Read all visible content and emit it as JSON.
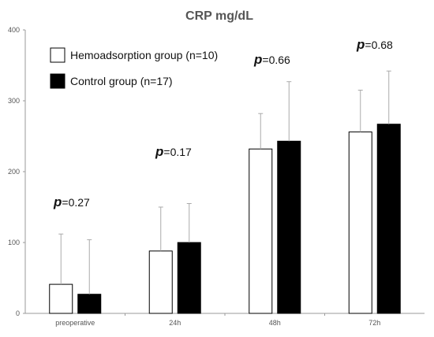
{
  "chart_data": {
    "type": "bar",
    "title": "CRP mg/dL",
    "xlabel": "",
    "ylabel": "",
    "ylim": [
      0,
      400
    ],
    "yticks": [
      0,
      100,
      200,
      300,
      400
    ],
    "categories": [
      "preoperative",
      "24h",
      "48h",
      "72h"
    ],
    "series": [
      {
        "name": "Hemoadsorption group (n=10)",
        "fill": "#ffffff",
        "values": [
          41,
          88,
          232,
          256
        ],
        "error_upper": [
          112,
          150,
          282,
          315
        ]
      },
      {
        "name": "Control group (n=17)",
        "fill": "#000000",
        "values": [
          27,
          100,
          243,
          267
        ],
        "error_upper": [
          104,
          155,
          327,
          342
        ]
      }
    ],
    "annotations": [
      {
        "letter": "p",
        "text": "=0.27",
        "category": "preoperative"
      },
      {
        "letter": "p",
        "text": "=0.17",
        "category": "24h"
      },
      {
        "letter": "p",
        "text": "=0.66",
        "category": "48h"
      },
      {
        "letter": "p",
        "text": "=0.68",
        "category": "72h"
      }
    ],
    "legend_position": "top-left",
    "grid": false
  }
}
